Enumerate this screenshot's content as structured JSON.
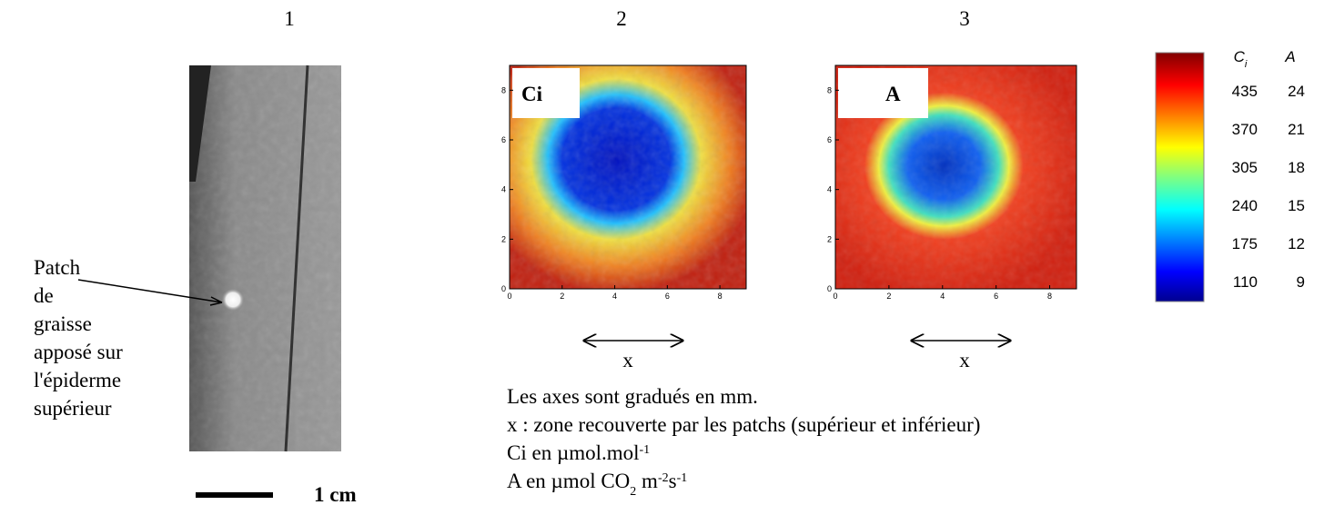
{
  "panels": [
    {
      "number": "1"
    },
    {
      "number": "2",
      "label": "Ci"
    },
    {
      "number": "3",
      "label": "A"
    }
  ],
  "photo": {
    "annotation": [
      "Patch",
      "de",
      "graisse",
      "apposé sur",
      "l'épiderme",
      "supérieur"
    ],
    "scale": "1 cm"
  },
  "heatmap_axes": {
    "lim": [
      0,
      9
    ],
    "ticks": [
      0,
      2,
      4,
      6,
      8
    ]
  },
  "zone_marker": "x",
  "colorbar": {
    "headers": [
      {
        "text": "C",
        "sub": "i"
      },
      {
        "text": "A"
      }
    ],
    "ci_values": [
      435,
      370,
      305,
      240,
      175,
      110
    ],
    "a_values": [
      24,
      21,
      18,
      15,
      12,
      9
    ]
  },
  "notes": [
    [
      {
        "text": "Les axes sont gradués en mm."
      }
    ],
    [
      {
        "text": "x : zone recouverte par les patchs (supérieur et inférieur)"
      }
    ],
    [
      {
        "text": "Ci en µmol.mol"
      },
      {
        "text": "-1",
        "style": "sup"
      }
    ],
    [
      {
        "text": "A en µmol CO"
      },
      {
        "text": "2",
        "style": "sub"
      },
      {
        "text": " m"
      },
      {
        "text": "-2",
        "style": "sup"
      },
      {
        "text": "s"
      },
      {
        "text": "-1",
        "style": "sup"
      }
    ]
  ]
}
